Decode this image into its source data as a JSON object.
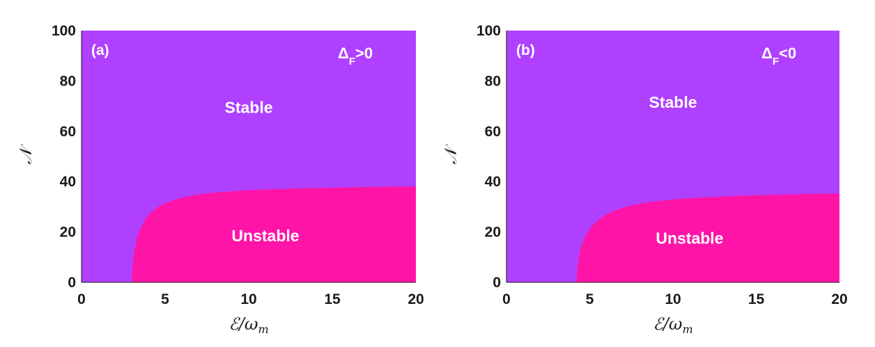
{
  "colors": {
    "stable": "#b040ff",
    "unstable": "#ff14a8",
    "axis": "#1a1a1a"
  },
  "chart_data": [
    {
      "type": "area",
      "panel_label": "(a)",
      "annotation": {
        "symbol": "Δ",
        "subscript": "F",
        "relation": ">0"
      },
      "xlabel": {
        "main": "ℰ/ω",
        "sub": "m"
      },
      "ylabel": "𝒩",
      "xlim": [
        0,
        20
      ],
      "ylim": [
        0,
        100
      ],
      "xticks": [
        0,
        5,
        10,
        15,
        20
      ],
      "yticks": [
        0,
        20,
        40,
        60,
        80,
        100
      ],
      "regions": [
        {
          "name": "Stable",
          "color": "#b040ff"
        },
        {
          "name": "Unstable",
          "color": "#ff14a8"
        }
      ],
      "boundary": {
        "x": [
          3.0,
          3.05,
          3.15,
          3.3,
          3.5,
          3.8,
          4.2,
          4.7,
          5.3,
          6.0,
          7.0,
          8.0,
          10.0,
          12.5,
          15.0,
          17.5,
          20.0
        ],
        "y": [
          0,
          6,
          12,
          17,
          21,
          25,
          28,
          30.5,
          32.3,
          33.6,
          34.9,
          35.7,
          36.6,
          37.2,
          37.6,
          37.9,
          38.1
        ]
      },
      "region_label_positions": {
        "Stable": [
          10,
          69
        ],
        "Unstable": [
          11,
          18
        ]
      }
    },
    {
      "type": "area",
      "panel_label": "(b)",
      "annotation": {
        "symbol": "Δ",
        "subscript": "F",
        "relation": "<0"
      },
      "xlabel": {
        "main": "ℰ/ω",
        "sub": "m"
      },
      "ylabel": "𝒩",
      "xlim": [
        0,
        20
      ],
      "ylim": [
        0,
        100
      ],
      "xticks": [
        0,
        5,
        10,
        15,
        20
      ],
      "yticks": [
        0,
        20,
        40,
        60,
        80,
        100
      ],
      "regions": [
        {
          "name": "Stable",
          "color": "#b040ff"
        },
        {
          "name": "Unstable",
          "color": "#ff14a8"
        }
      ],
      "boundary": {
        "x": [
          4.2,
          4.25,
          4.35,
          4.5,
          4.75,
          5.1,
          5.5,
          6.0,
          6.6,
          7.3,
          8.2,
          9.5,
          11.0,
          13.0,
          15.0,
          17.5,
          20.0
        ],
        "y": [
          0,
          5,
          10,
          14.5,
          18.5,
          22,
          24.8,
          27,
          28.8,
          30.2,
          31.5,
          32.6,
          33.4,
          34.1,
          34.6,
          35.0,
          35.3
        ]
      },
      "region_label_positions": {
        "Stable": [
          10,
          71
        ],
        "Unstable": [
          11,
          17
        ]
      }
    }
  ]
}
